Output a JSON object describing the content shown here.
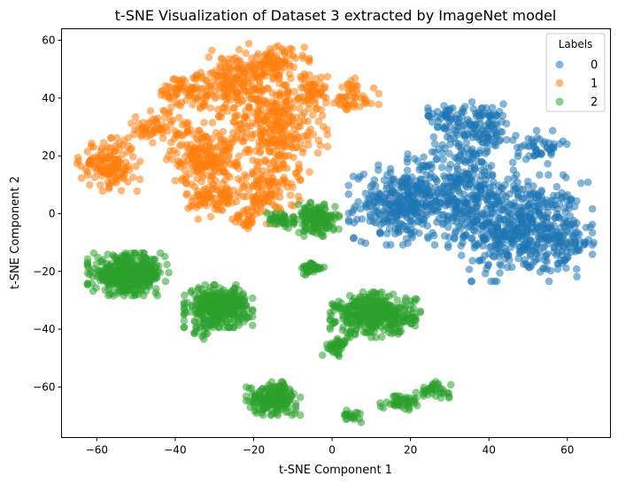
{
  "chart_data": {
    "type": "scatter",
    "title": "t-SNE Visualization of Dataset 3 extracted by ImageNet model",
    "xlabel": "t-SNE Component 1",
    "ylabel": "t-SNE Component 2",
    "xlim": [
      -69,
      71
    ],
    "ylim": [
      -77.5,
      64
    ],
    "xticks": [
      -60,
      -40,
      -20,
      0,
      20,
      40,
      60
    ],
    "yticks": [
      -60,
      -40,
      -20,
      0,
      20,
      40,
      60
    ],
    "xtick_labels": [
      "−60",
      "−40",
      "−20",
      "0",
      "20",
      "40",
      "60"
    ],
    "ytick_labels": [
      "−60",
      "−40",
      "−20",
      "0",
      "20",
      "40",
      "60"
    ],
    "grid": false,
    "legend": {
      "title": "Labels",
      "placement": "top-right"
    },
    "series": [
      {
        "name": "0",
        "color": "#1f77b4",
        "clusters": [
          {
            "cx": 48,
            "cy": -5,
            "sx": 8,
            "sy": 8,
            "n": 500
          },
          {
            "cx": 18,
            "cy": 3,
            "sx": 6,
            "sy": 6,
            "n": 320
          },
          {
            "cx": 33,
            "cy": 10,
            "sx": 6,
            "sy": 8,
            "n": 260
          },
          {
            "cx": 38,
            "cy": 30,
            "sx": 4,
            "sy": 4,
            "n": 120
          },
          {
            "cx": 29,
            "cy": 34,
            "sx": 2.5,
            "sy": 2,
            "n": 40
          },
          {
            "cx": 53,
            "cy": 23,
            "sx": 3,
            "sy": 2.5,
            "n": 50
          },
          {
            "cx": 60,
            "cy": -10,
            "sx": 3,
            "sy": 4,
            "n": 60
          }
        ]
      },
      {
        "name": "1",
        "color": "#ff7f0e",
        "clusters": [
          {
            "cx": -57,
            "cy": 17,
            "sx": 3.5,
            "sy": 4,
            "n": 150
          },
          {
            "cx": -45,
            "cy": 30,
            "sx": 3.5,
            "sy": 2.5,
            "n": 60
          },
          {
            "cx": -38,
            "cy": 42,
            "sx": 3,
            "sy": 3,
            "n": 70
          },
          {
            "cx": -33,
            "cy": 20,
            "sx": 4,
            "sy": 5,
            "n": 200
          },
          {
            "cx": -30,
            "cy": 5,
            "sx": 3.5,
            "sy": 3,
            "n": 80
          },
          {
            "cx": -25,
            "cy": 45,
            "sx": 5,
            "sy": 5,
            "n": 180
          },
          {
            "cx": -15,
            "cy": 30,
            "sx": 6,
            "sy": 8,
            "n": 300
          },
          {
            "cx": -15,
            "cy": 52,
            "sx": 4,
            "sy": 3,
            "n": 100
          },
          {
            "cx": -17,
            "cy": 8,
            "sx": 4,
            "sy": 5,
            "n": 120
          },
          {
            "cx": -5,
            "cy": 42,
            "sx": 3,
            "sy": 3,
            "n": 60
          },
          {
            "cx": 5,
            "cy": 40,
            "sx": 3,
            "sy": 3,
            "n": 50
          },
          {
            "cx": -22,
            "cy": -2,
            "sx": 2,
            "sy": 2,
            "n": 25
          }
        ]
      },
      {
        "name": "2",
        "color": "#2ca02c",
        "clusters": [
          {
            "cx": -52,
            "cy": -21,
            "sx": 4.5,
            "sy": 3.2,
            "n": 400
          },
          {
            "cx": -29,
            "cy": -32,
            "sx": 3.8,
            "sy": 3.2,
            "n": 350
          },
          {
            "cx": 11,
            "cy": -35,
            "sx": 5,
            "sy": 3.4,
            "n": 400
          },
          {
            "cx": -4,
            "cy": -2,
            "sx": 2.5,
            "sy": 2.5,
            "n": 150
          },
          {
            "cx": -13,
            "cy": -2,
            "sx": 2,
            "sy": 1.5,
            "n": 40
          },
          {
            "cx": -5,
            "cy": -19,
            "sx": 1.3,
            "sy": 1,
            "n": 40
          },
          {
            "cx": 1,
            "cy": -46,
            "sx": 1.5,
            "sy": 1.5,
            "n": 40
          },
          {
            "cx": -15,
            "cy": -64,
            "sx": 3,
            "sy": 2.5,
            "n": 200
          },
          {
            "cx": 18,
            "cy": -65,
            "sx": 2.5,
            "sy": 1.3,
            "n": 50
          },
          {
            "cx": 26,
            "cy": -61,
            "sx": 2,
            "sy": 1.2,
            "n": 40
          },
          {
            "cx": 5,
            "cy": -70,
            "sx": 1.2,
            "sy": 1,
            "n": 20
          },
          {
            "cx": -33,
            "cy": -40,
            "sx": 2,
            "sy": 1.5,
            "n": 20
          }
        ]
      }
    ]
  }
}
